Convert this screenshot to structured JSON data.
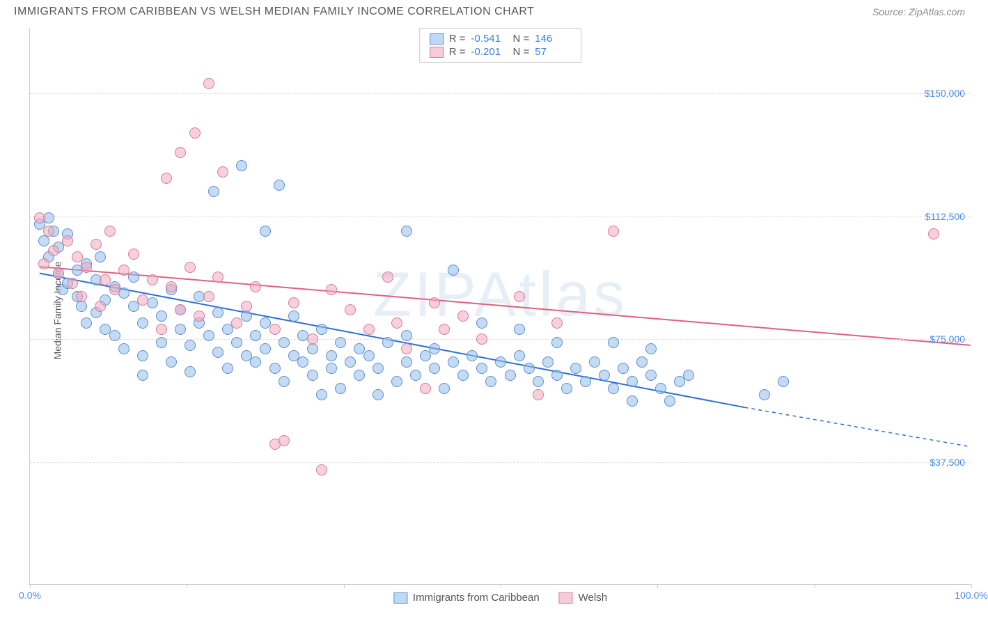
{
  "header": {
    "title": "IMMIGRANTS FROM CARIBBEAN VS WELSH MEDIAN FAMILY INCOME CORRELATION CHART",
    "source": "Source: ZipAtlas.com"
  },
  "watermark": "ZIPAtlas",
  "chart": {
    "type": "scatter",
    "y_axis_label": "Median Family Income",
    "background_color": "#ffffff",
    "grid_color": "#dddddd",
    "xlim": [
      0,
      100
    ],
    "ylim": [
      0,
      170000
    ],
    "x_ticks": [
      0,
      16.67,
      33.33,
      50,
      66.67,
      83.33,
      100
    ],
    "x_tick_labels": {
      "0": "0.0%",
      "100": "100.0%"
    },
    "y_gridlines": [
      37500,
      75000,
      112500,
      150000
    ],
    "y_tick_labels": [
      "$37,500",
      "$75,000",
      "$112,500",
      "$150,000"
    ],
    "series": [
      {
        "name": "Immigrants from Caribbean",
        "color_fill": "rgba(150,190,235,0.55)",
        "color_stroke": "#5b8fd0",
        "marker_size": 16,
        "stats": {
          "R": "-0.541",
          "N": "146"
        },
        "trendline": {
          "color": "#2d6fd6",
          "width": 2,
          "x1": 1,
          "y1": 95000,
          "x2": 76,
          "y2": 54000,
          "dashed_ext_x": 100,
          "dashed_ext_y": 42000
        },
        "points": [
          [
            1,
            110000
          ],
          [
            1.5,
            105000
          ],
          [
            2,
            112000
          ],
          [
            2,
            100000
          ],
          [
            2.5,
            108000
          ],
          [
            3,
            103000
          ],
          [
            3,
            95000
          ],
          [
            3.5,
            90000
          ],
          [
            4,
            107000
          ],
          [
            4,
            92000
          ],
          [
            5,
            96000
          ],
          [
            5,
            88000
          ],
          [
            5.5,
            85000
          ],
          [
            6,
            98000
          ],
          [
            6,
            80000
          ],
          [
            7,
            93000
          ],
          [
            7,
            83000
          ],
          [
            7.5,
            100000
          ],
          [
            8,
            87000
          ],
          [
            8,
            78000
          ],
          [
            9,
            91000
          ],
          [
            9,
            76000
          ],
          [
            10,
            89000
          ],
          [
            10,
            72000
          ],
          [
            11,
            85000
          ],
          [
            11,
            94000
          ],
          [
            12,
            80000
          ],
          [
            12,
            70000
          ],
          [
            12,
            64000
          ],
          [
            13,
            86000
          ],
          [
            14,
            82000
          ],
          [
            14,
            74000
          ],
          [
            15,
            90000
          ],
          [
            15,
            68000
          ],
          [
            16,
            78000
          ],
          [
            16,
            84000
          ],
          [
            17,
            73000
          ],
          [
            17,
            65000
          ],
          [
            18,
            80000
          ],
          [
            18,
            88000
          ],
          [
            19,
            76000
          ],
          [
            19.5,
            120000
          ],
          [
            20,
            71000
          ],
          [
            20,
            83000
          ],
          [
            21,
            78000
          ],
          [
            21,
            66000
          ],
          [
            22,
            74000
          ],
          [
            22.5,
            128000
          ],
          [
            23,
            70000
          ],
          [
            23,
            82000
          ],
          [
            24,
            68000
          ],
          [
            24,
            76000
          ],
          [
            25,
            72000
          ],
          [
            25,
            80000
          ],
          [
            25,
            108000
          ],
          [
            26,
            66000
          ],
          [
            26.5,
            122000
          ],
          [
            27,
            74000
          ],
          [
            27,
            62000
          ],
          [
            28,
            70000
          ],
          [
            28,
            82000
          ],
          [
            29,
            68000
          ],
          [
            29,
            76000
          ],
          [
            30,
            64000
          ],
          [
            30,
            72000
          ],
          [
            31,
            78000
          ],
          [
            31,
            58000
          ],
          [
            32,
            70000
          ],
          [
            32,
            66000
          ],
          [
            33,
            74000
          ],
          [
            33,
            60000
          ],
          [
            34,
            68000
          ],
          [
            35,
            72000
          ],
          [
            35,
            64000
          ],
          [
            36,
            70000
          ],
          [
            37,
            66000
          ],
          [
            37,
            58000
          ],
          [
            38,
            74000
          ],
          [
            39,
            62000
          ],
          [
            40,
            68000
          ],
          [
            40,
            76000
          ],
          [
            40,
            108000
          ],
          [
            41,
            64000
          ],
          [
            42,
            70000
          ],
          [
            43,
            66000
          ],
          [
            43,
            72000
          ],
          [
            44,
            60000
          ],
          [
            45,
            68000
          ],
          [
            45,
            96000
          ],
          [
            46,
            64000
          ],
          [
            47,
            70000
          ],
          [
            48,
            66000
          ],
          [
            48,
            80000
          ],
          [
            49,
            62000
          ],
          [
            50,
            68000
          ],
          [
            51,
            64000
          ],
          [
            52,
            70000
          ],
          [
            52,
            78000
          ],
          [
            53,
            66000
          ],
          [
            54,
            62000
          ],
          [
            55,
            68000
          ],
          [
            56,
            64000
          ],
          [
            56,
            74000
          ],
          [
            57,
            60000
          ],
          [
            58,
            66000
          ],
          [
            59,
            62000
          ],
          [
            60,
            68000
          ],
          [
            61,
            64000
          ],
          [
            62,
            60000
          ],
          [
            62,
            74000
          ],
          [
            63,
            66000
          ],
          [
            64,
            62000
          ],
          [
            64,
            56000
          ],
          [
            65,
            68000
          ],
          [
            66,
            64000
          ],
          [
            66,
            72000
          ],
          [
            67,
            60000
          ],
          [
            68,
            56000
          ],
          [
            69,
            62000
          ],
          [
            70,
            64000
          ],
          [
            78,
            58000
          ],
          [
            80,
            62000
          ]
        ]
      },
      {
        "name": "Welsh",
        "color_fill": "rgba(240,170,190,0.55)",
        "color_stroke": "#d97a9a",
        "marker_size": 16,
        "stats": {
          "R": "-0.201",
          "N": "57"
        },
        "trendline": {
          "color": "#e0607f",
          "width": 2,
          "x1": 1,
          "y1": 97000,
          "x2": 100,
          "y2": 73000
        },
        "points": [
          [
            1,
            112000
          ],
          [
            1.5,
            98000
          ],
          [
            2,
            108000
          ],
          [
            2.5,
            102000
          ],
          [
            3,
            95000
          ],
          [
            4,
            105000
          ],
          [
            4.5,
            92000
          ],
          [
            5,
            100000
          ],
          [
            5.5,
            88000
          ],
          [
            6,
            97000
          ],
          [
            7,
            104000
          ],
          [
            7.5,
            85000
          ],
          [
            8,
            93000
          ],
          [
            8.5,
            108000
          ],
          [
            9,
            90000
          ],
          [
            10,
            96000
          ],
          [
            11,
            101000
          ],
          [
            12,
            87000
          ],
          [
            13,
            93000
          ],
          [
            14,
            78000
          ],
          [
            14.5,
            124000
          ],
          [
            15,
            91000
          ],
          [
            16,
            84000
          ],
          [
            16,
            132000
          ],
          [
            17,
            97000
          ],
          [
            17.5,
            138000
          ],
          [
            18,
            82000
          ],
          [
            19,
            88000
          ],
          [
            19,
            153000
          ],
          [
            20,
            94000
          ],
          [
            20.5,
            126000
          ],
          [
            22,
            80000
          ],
          [
            23,
            85000
          ],
          [
            24,
            91000
          ],
          [
            26,
            78000
          ],
          [
            26,
            43000
          ],
          [
            27,
            44000
          ],
          [
            28,
            86000
          ],
          [
            30,
            75000
          ],
          [
            31,
            35000
          ],
          [
            32,
            90000
          ],
          [
            34,
            84000
          ],
          [
            36,
            78000
          ],
          [
            38,
            94000
          ],
          [
            39,
            80000
          ],
          [
            40,
            72000
          ],
          [
            42,
            60000
          ],
          [
            43,
            86000
          ],
          [
            44,
            78000
          ],
          [
            46,
            82000
          ],
          [
            48,
            75000
          ],
          [
            52,
            88000
          ],
          [
            54,
            58000
          ],
          [
            56,
            80000
          ],
          [
            62,
            108000
          ],
          [
            96,
            107000
          ]
        ]
      }
    ],
    "bottom_legend": [
      {
        "swatch": "s1",
        "label": "Immigrants from Caribbean"
      },
      {
        "swatch": "s2",
        "label": "Welsh"
      }
    ]
  }
}
